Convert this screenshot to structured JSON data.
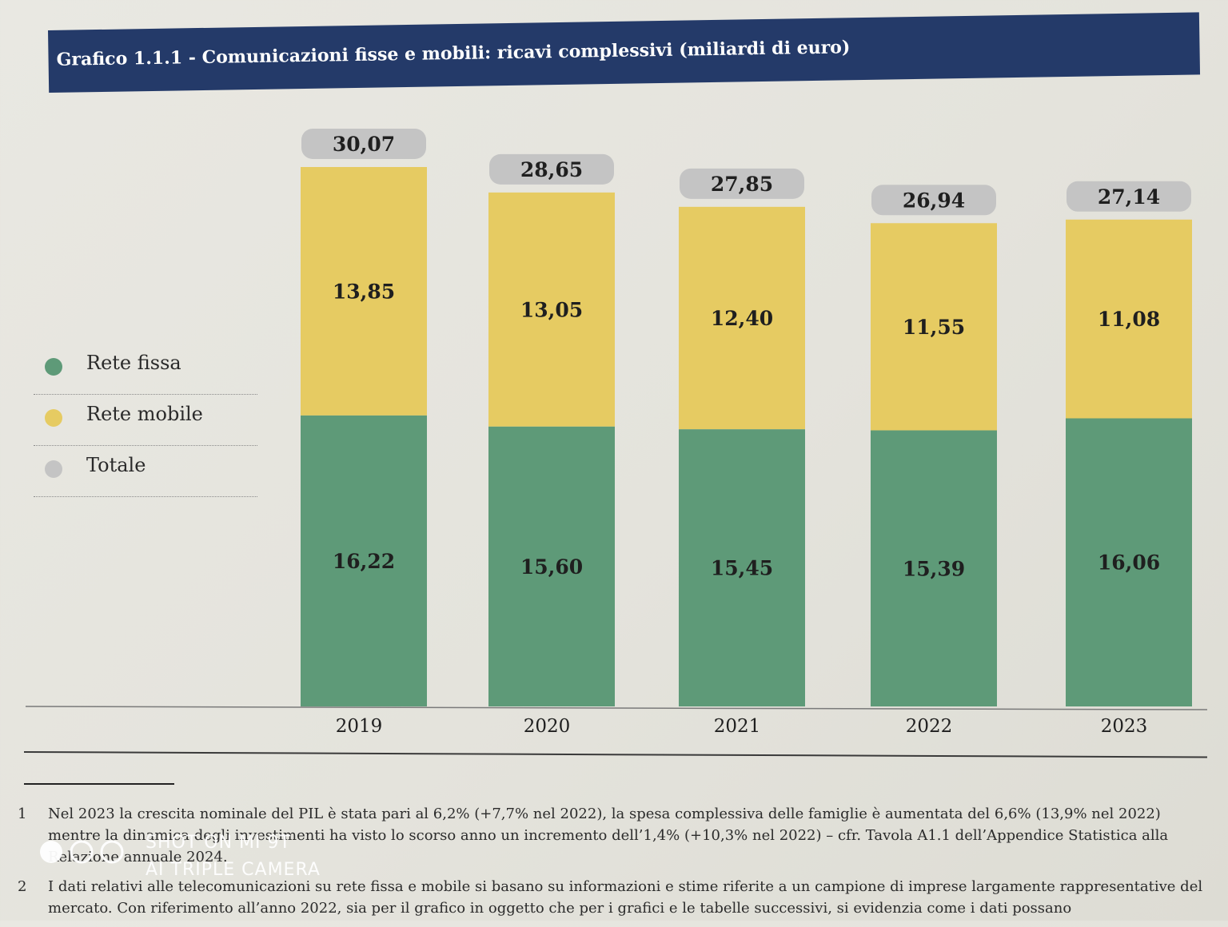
{
  "title": "Grafico 1.1.1 - Comunicazioni fisse e mobili: ricavi complessivi (miliardi di euro)",
  "legend": [
    {
      "label": "Rete fissa",
      "color": "#5e9a78"
    },
    {
      "label": "Rete mobile",
      "color": "#e6cb62"
    },
    {
      "label": "Totale",
      "color": "#c4c4c4"
    }
  ],
  "chart_data": {
    "type": "bar",
    "stacked": true,
    "categories": [
      "2019",
      "2020",
      "2021",
      "2022",
      "2023"
    ],
    "series": [
      {
        "name": "Rete fissa",
        "color": "#5e9a78",
        "values": [
          16.22,
          15.6,
          15.45,
          15.39,
          16.06
        ],
        "labels": [
          "16,22",
          "15,60",
          "15,45",
          "15,39",
          "16,06"
        ]
      },
      {
        "name": "Rete mobile",
        "color": "#e6cb62",
        "values": [
          13.85,
          13.05,
          12.4,
          11.55,
          11.08
        ],
        "labels": [
          "13,85",
          "13,05",
          "12,40",
          "11,55",
          "11,08"
        ]
      }
    ],
    "totals": {
      "name": "Totale",
      "values": [
        30.07,
        28.65,
        27.85,
        26.94,
        27.14
      ],
      "labels": [
        "30,07",
        "28,65",
        "27,85",
        "26,94",
        "27,14"
      ]
    },
    "ylim": [
      0,
      30.07
    ],
    "legend_position": "left"
  },
  "footnotes": [
    {
      "number": "1",
      "text": "Nel 2023 la crescita nominale del PIL è stata pari al 6,2% (+7,7% nel 2022), la spesa complessiva delle famiglie è aumentata del 6,6% (13,9% nel 2022) mentre la dinamica degli investimenti ha visto lo scorso anno un incremento dell’1,4% (+10,3% nel 2022) – cfr. Tavola A1.1 dell’Appendice Statistica alla Relazione annuale 2024."
    },
    {
      "number": "2",
      "text": "I dati relativi alle telecomunicazioni su rete fissa e mobile si basano su informazioni e stime riferite a un campione di imprese largamente rappresentative del mercato. Con riferimento all’anno 2022, sia per il grafico in oggetto che per i grafici e le tabelle successivi, si evidenzia come i dati possano"
    }
  ],
  "watermark": {
    "line1": "SHOT ON MI 9T",
    "line2": "AI TRIPLE CAMERA"
  }
}
